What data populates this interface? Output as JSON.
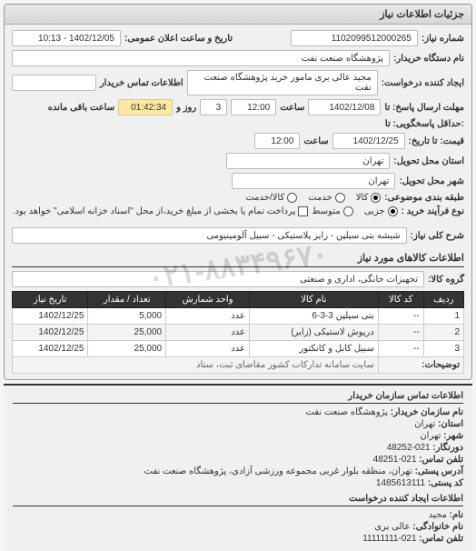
{
  "panel_title": "جزئیات اطلاعات نیاز",
  "fields": {
    "request_no_label": "شماره نیاز:",
    "request_no": "1102099512000265",
    "public_datetime_label": "تاریخ و ساعت اعلان عمومی:",
    "public_datetime": "1402/12/05 - 10:13",
    "buyer_org_label": "نام دستگاه خریدار:",
    "buyer_org": "پژوهشگاه صنعت نفت",
    "requester_label": "ایجاد کننده درخواست:",
    "requester": "مجید عالی بری مامور خرید پژوهشگاه صنعت نفت",
    "buyer_contact_label": "اطلاعات تماس خریدار",
    "resp_deadline_label": "مهلت ارسال پاسخ: تا",
    "resp_deadline_date": "1402/12/08",
    "time_label": "ساعت",
    "resp_deadline_time": "12:00",
    "remain_days": "3",
    "remain_days_label": "روز و",
    "remain_time": "01:42:34",
    "remain_label": "ساعت باقی مانده",
    "delivery_deadline_label": ":حداقل پاسخگویی: تا",
    "qty_to_date_label": "قیمت: تا تاریخ:",
    "delivery_deadline_date": "1402/12/25",
    "delivery_deadline_time": "12:00",
    "delivery_province_label": "استان محل تحویل:",
    "delivery_province": "تهران",
    "delivery_city_label": "شهر محل تحویل:",
    "delivery_city": "تهران",
    "subject_class_label": "طبقه بندی موضوعی:",
    "subject_opt_goods": "کالا",
    "subject_opt_service": "خدمت",
    "subject_opt_both": "کالا/خدمت",
    "buy_process_label": "نوع فرآیند خرید :",
    "buy_opt_mid": "متوسط",
    "buy_opt_small": "جزیی",
    "buy_note": "پرداخت تمام یا بخشی از مبلغ خرید،از محل \"اسناد خزانه اسلامی\" خواهد بود.",
    "need_desc_label": "شرح کلی نیاز:",
    "need_desc": "شیشه بتی سیلپن - زایر پلاستیکی - سبیل آلومینیومی"
  },
  "goods": {
    "section_title": "اطلاعات کالاهای مورد نیاز",
    "group_label": "گروه کالا:",
    "group_value": "تجهیزات خانگی، اداری و صنعتی",
    "columns": [
      "ردیف",
      "کد کالا",
      "نام کالا",
      "واحد شمارش",
      "تعداد / مقدار",
      "تاریخ نیاز"
    ],
    "rows": [
      [
        "1",
        "--",
        "بتی سیلپن 3-3-6",
        "عدد",
        "5,000",
        "1402/12/25"
      ],
      [
        "2",
        "--",
        "درپوش لاستیکی (زایر)",
        "عدد",
        "25,000",
        "1402/12/25"
      ],
      [
        "3",
        "--",
        "سبیل کابل و کانکتور",
        "عدد",
        "25,000",
        "1402/12/25"
      ]
    ],
    "desc_row_label": "توضیحات:",
    "desc_row_value": "سایت سامانه تدارکات کشور مقاضای ثبت، ستاد"
  },
  "contact": {
    "header1": "اطلاعات تماس سازمان خریدار",
    "org_label": "نام سازمان خریدار:",
    "org": "پژوهشگاه صنعت نفت",
    "province_label": "استان:",
    "province": "تهران",
    "city_label": "شهر:",
    "city": "تهران",
    "pref_label": "دورنگار:",
    "pref": "021-48252",
    "phone_label": "تلفن تماس:",
    "phone": "021-48251",
    "addr_label": "آدرس پستی:",
    "addr": "تهران، منطقه بلوار غربی مجموعه ورزشی آزادی، پژوهشگاه صنعت نفت",
    "post_label": "کد پستی:",
    "post": "1485613111",
    "header2": "اطلاعات ایجاد کننده درخواست",
    "fname_label": "نام:",
    "fname": "مجید",
    "lname_label": "نام خانوادگی:",
    "lname": "عالی بری",
    "cphone_label": "تلفن تماس:",
    "cphone": "021-11111111"
  },
  "watermark": "۰۲۱-۸۸۳۴۹۶۷۰"
}
